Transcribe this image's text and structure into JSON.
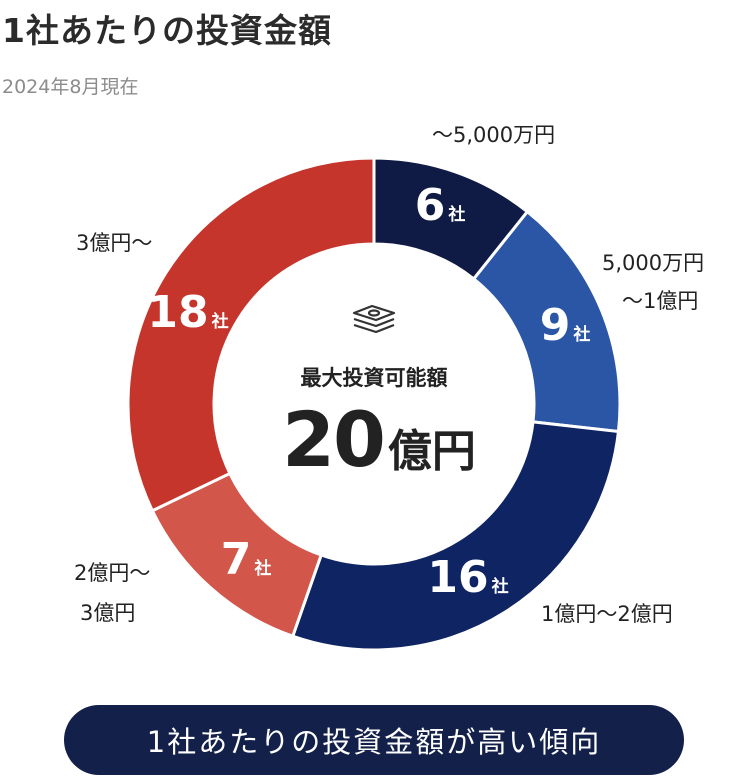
{
  "header": {
    "title": "1社あたりの投資金額",
    "subtitle": "2024年8月現在"
  },
  "center": {
    "label": "最大投資可能額",
    "value": "20",
    "unit": "億円",
    "icon": "money-stack-icon"
  },
  "banner": {
    "text": "1社あたりの投資金額が高い傾向"
  },
  "colors": {
    "navy_dark": "#0f1b45",
    "blue": "#2b56a6",
    "navy": "#0f2463",
    "red_light": "#d2574a",
    "red": "#c5352c",
    "banner": "#13204a"
  },
  "chart_data": {
    "type": "pie",
    "unit_label": "社",
    "slices": [
      {
        "label_lines": [
          "〜5,000万円"
        ],
        "value": 6,
        "color": "#0f1b45"
      },
      {
        "label_lines": [
          "5,000万円",
          "〜1億円"
        ],
        "value": 9,
        "color": "#2b56a6"
      },
      {
        "label_lines": [
          "1億円〜2億円"
        ],
        "value": 16,
        "color": "#0f2463"
      },
      {
        "label_lines": [
          "2億円〜",
          "3億円"
        ],
        "value": 7,
        "color": "#d2574a"
      },
      {
        "label_lines": [
          "3億円〜"
        ],
        "value": 18,
        "color": "#c5352c"
      }
    ]
  }
}
